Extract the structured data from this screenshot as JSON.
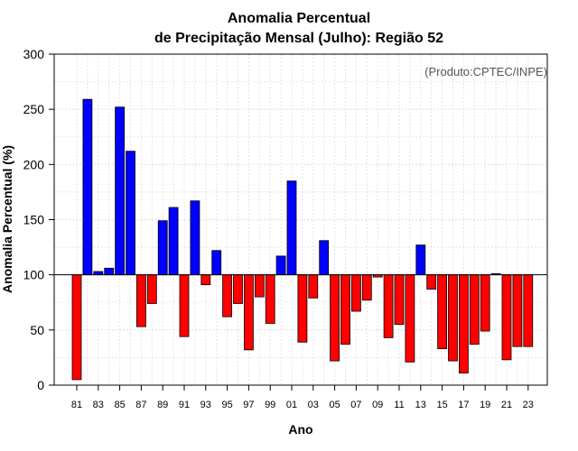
{
  "chart_data": {
    "type": "bar",
    "title_line1": "Anomalia Percentual",
    "title_line2": "de Precipitação Mensal (Julho): Região 52",
    "xlabel": "Ano",
    "ylabel": "Anomalia Percentual (%)",
    "source_note": "(Produto:CPTEC/INPE)",
    "ylim": [
      0,
      300
    ],
    "yticks": [
      0,
      50,
      100,
      150,
      200,
      250,
      300
    ],
    "baseline": 100,
    "grid": true,
    "colors": {
      "above": "#0000ff",
      "below": "#ff0000",
      "edge": "#000000"
    },
    "categories": [
      "81",
      "82",
      "83",
      "84",
      "85",
      "86",
      "87",
      "88",
      "89",
      "90",
      "91",
      "92",
      "93",
      "94",
      "95",
      "96",
      "97",
      "98",
      "99",
      "00",
      "01",
      "02",
      "03",
      "04",
      "05",
      "06",
      "07",
      "08",
      "09",
      "10",
      "11",
      "12",
      "13",
      "14",
      "15",
      "16",
      "17",
      "18",
      "19",
      "20",
      "21",
      "22",
      "23"
    ],
    "xtick_labels": [
      "81",
      "83",
      "85",
      "87",
      "89",
      "91",
      "93",
      "95",
      "97",
      "99",
      "01",
      "03",
      "05",
      "07",
      "09",
      "11",
      "13",
      "15",
      "17",
      "19",
      "21",
      "23"
    ],
    "values": [
      5,
      259,
      103,
      106,
      252,
      212,
      53,
      74,
      149,
      161,
      44,
      167,
      91,
      122,
      62,
      74,
      32,
      80,
      56,
      117,
      185,
      39,
      79,
      131,
      22,
      37,
      67,
      77,
      98,
      43,
      55,
      21,
      127,
      87,
      33,
      22,
      11,
      37,
      49,
      101,
      23,
      35,
      35
    ]
  }
}
